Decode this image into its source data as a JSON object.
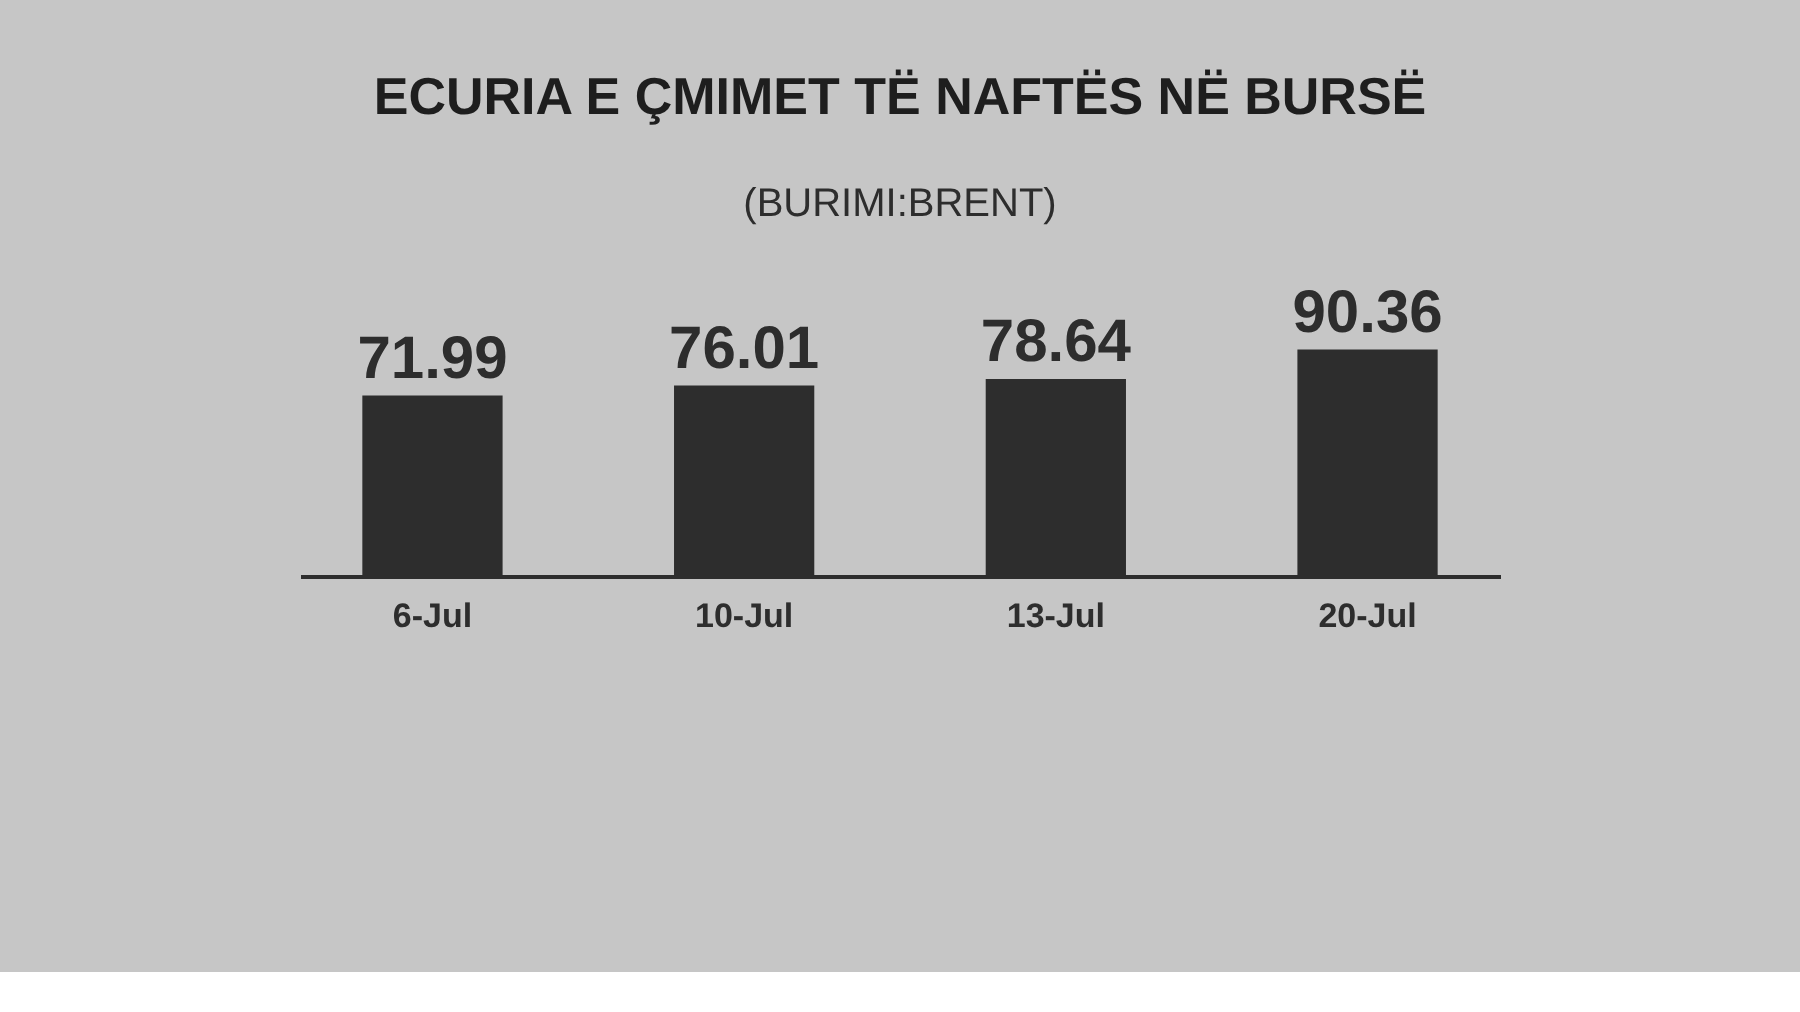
{
  "chart_data": {
    "type": "bar",
    "title": "ECURIA E ÇMIMET TË NAFTËS NË BURSË",
    "subtitle": "(BURIMI:BRENT)",
    "categories": [
      "6-Jul",
      "10-Jul",
      "13-Jul",
      "20-Jul"
    ],
    "values": [
      71.99,
      76.01,
      78.64,
      90.36
    ],
    "color": "#2d2d2d",
    "data_labels": true,
    "grid": false
  }
}
